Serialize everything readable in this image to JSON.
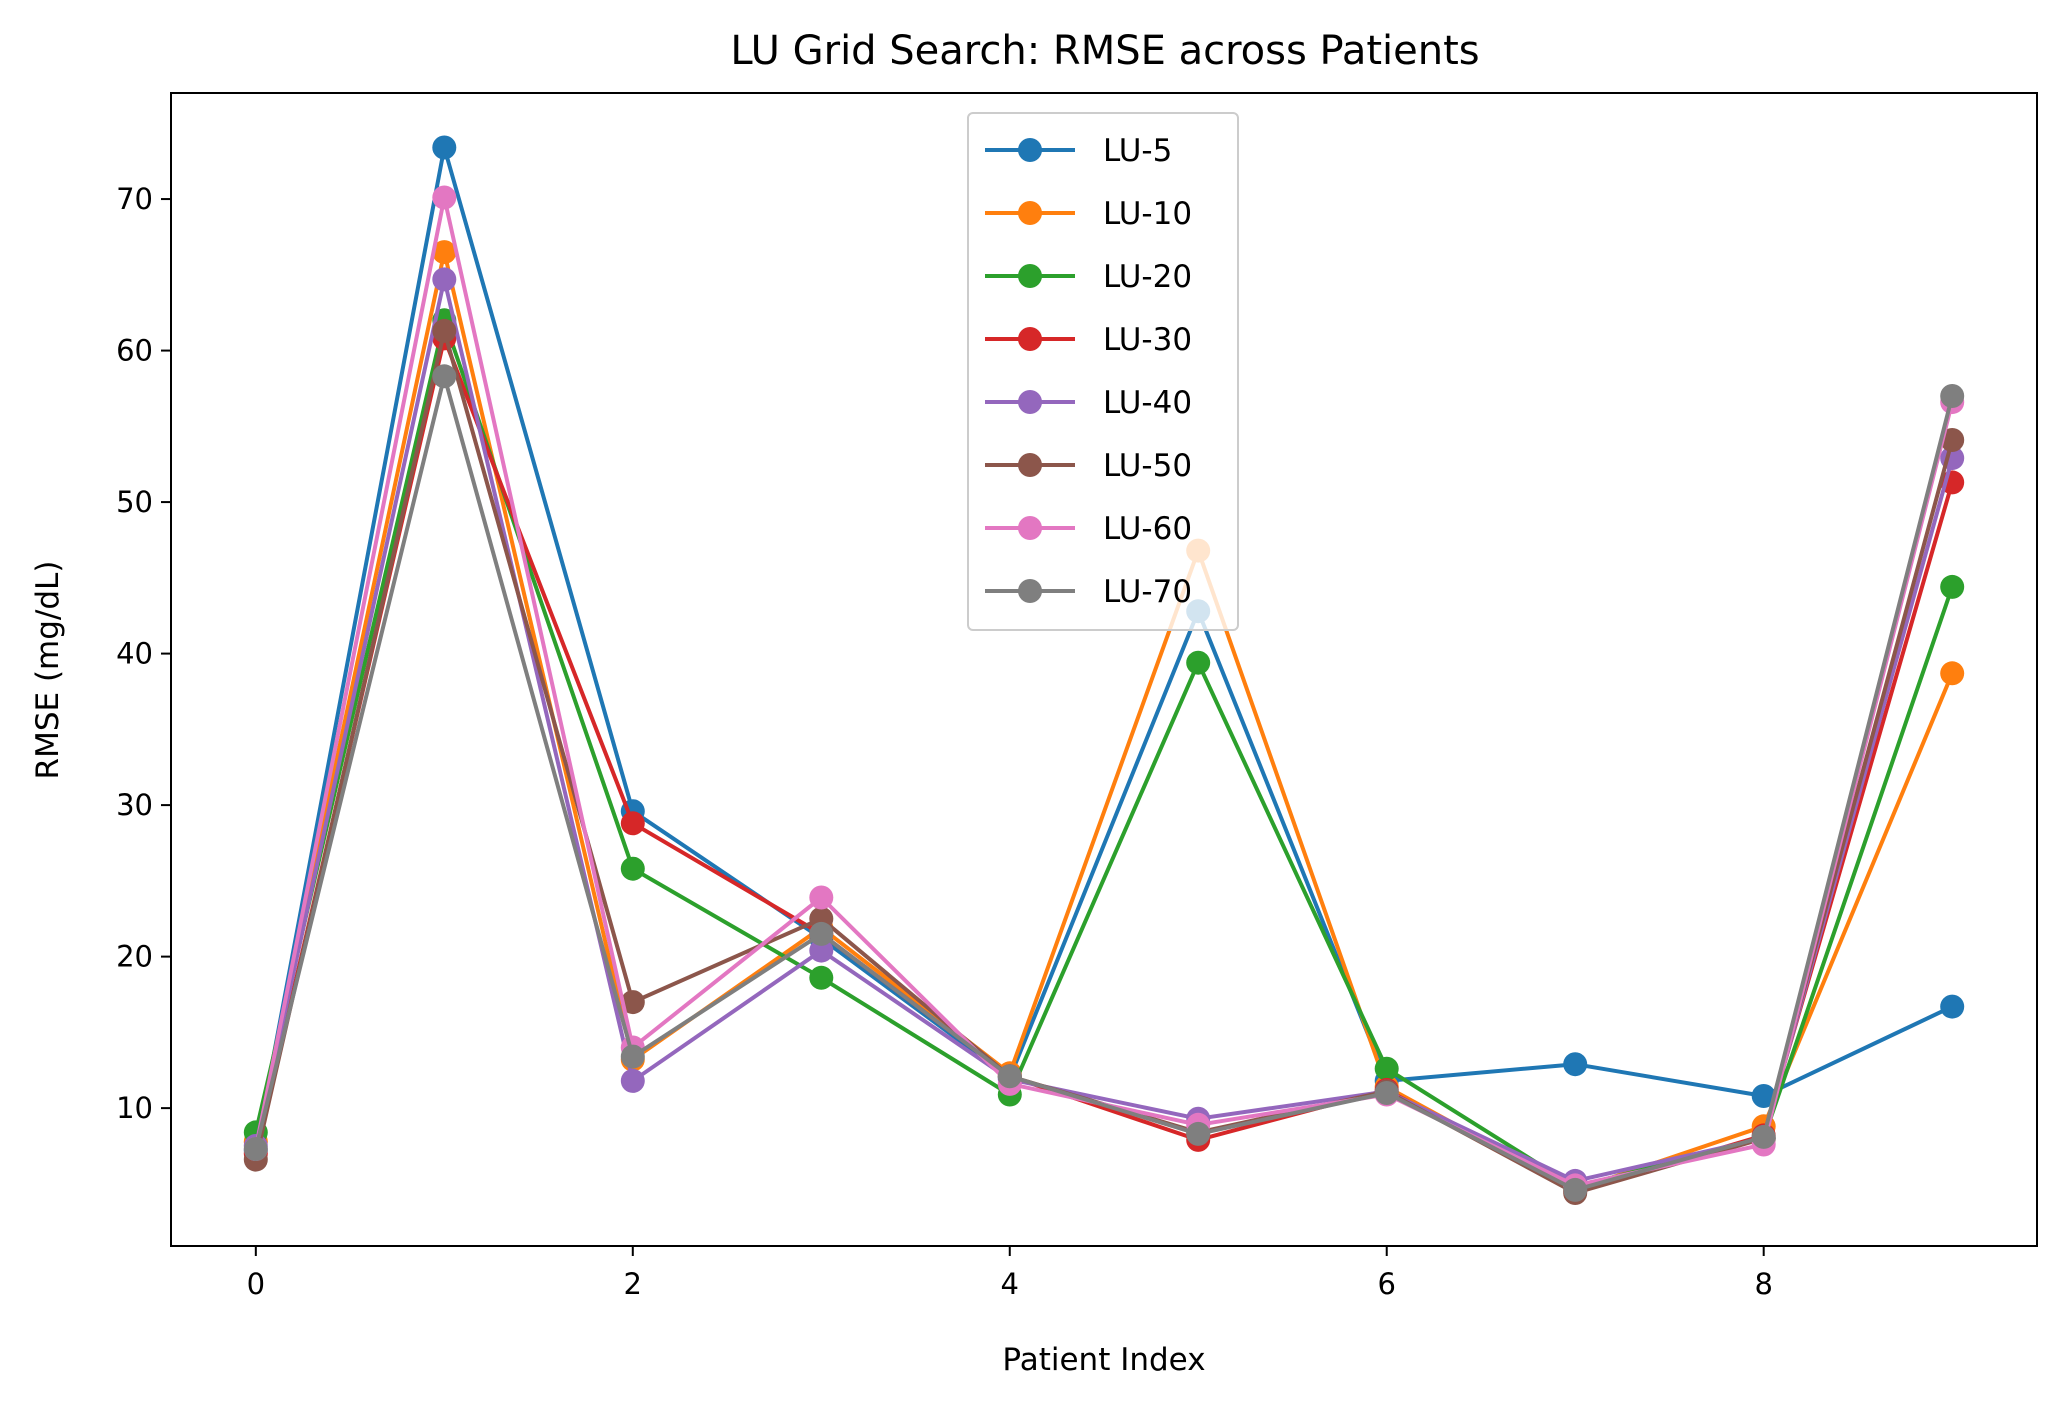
{
  "chart_data": {
    "type": "line",
    "title": "LU Grid Search: RMSE across Patients",
    "xlabel": "Patient Index",
    "ylabel": "RMSE (mg/dL)",
    "xlim": [
      -0.45,
      9.45
    ],
    "ylim": [
      0.9,
      77.0
    ],
    "xticks": [
      0,
      2,
      4,
      6,
      8
    ],
    "yticks": [
      10,
      20,
      30,
      40,
      50,
      60,
      70
    ],
    "legend_position": "upper center",
    "grid": false,
    "x": [
      0,
      1,
      2,
      3,
      4,
      5,
      6,
      7,
      8,
      9
    ],
    "series": [
      {
        "name": "LU-5",
        "color": "#1f77b4",
        "values": [
          7.2,
          73.4,
          29.6,
          21.2,
          12.0,
          42.8,
          11.8,
          12.9,
          10.8,
          16.7
        ]
      },
      {
        "name": "LU-10",
        "color": "#ff7f0e",
        "values": [
          7.8,
          66.5,
          13.2,
          21.9,
          12.3,
          46.8,
          11.4,
          4.6,
          8.8,
          38.7
        ]
      },
      {
        "name": "LU-20",
        "color": "#2ca02c",
        "values": [
          8.4,
          62.0,
          25.8,
          18.6,
          10.9,
          39.4,
          12.6,
          4.8,
          8.0,
          44.4
        ]
      },
      {
        "name": "LU-30",
        "color": "#d62728",
        "values": [
          7.0,
          60.8,
          28.8,
          21.5,
          12.1,
          7.9,
          11.2,
          4.5,
          8.2,
          51.3
        ]
      },
      {
        "name": "LU-40",
        "color": "#9467bd",
        "values": [
          7.5,
          64.7,
          11.8,
          20.4,
          11.9,
          9.3,
          11.1,
          5.2,
          8.0,
          52.9
        ]
      },
      {
        "name": "LU-50",
        "color": "#8c564b",
        "values": [
          6.6,
          61.3,
          17.0,
          22.5,
          12.1,
          8.4,
          11.1,
          4.4,
          8.0,
          54.1
        ]
      },
      {
        "name": "LU-60",
        "color": "#e377c2",
        "values": [
          7.3,
          70.1,
          14.0,
          23.9,
          11.6,
          8.9,
          10.9,
          4.9,
          7.6,
          56.6
        ]
      },
      {
        "name": "LU-70",
        "color": "#7f7f7f",
        "values": [
          7.3,
          58.3,
          13.4,
          21.5,
          12.1,
          8.3,
          11.0,
          4.6,
          8.1,
          57.0
        ]
      }
    ]
  }
}
